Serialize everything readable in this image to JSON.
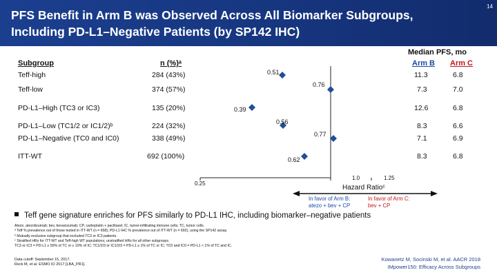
{
  "slide_number": "14",
  "title": "PFS Benefit in Arm B was Observed Across All Biomarker Subgroups, Including PD-L1–Negative Patients (by SP142 IHC)",
  "table": {
    "subgroup_header": "Subgroup",
    "n_header": "n (%)ᵃ",
    "median_header": "Median PFS, mo",
    "arm_b_header": "Arm B",
    "arm_c_header": "Arm C",
    "rows": [
      {
        "subgroup": "Teff-high",
        "n": "284 (43%)",
        "hr": "0.51",
        "arm_b": "11.3",
        "arm_c": "6.8"
      },
      {
        "subgroup": "Teff-low",
        "n": "374 (57%)",
        "hr": "0.76",
        "arm_b": "7.3",
        "arm_c": "7.0"
      },
      {
        "subgroup": "PD-L1–High (TC3 or IC3)",
        "n": "135 (20%)",
        "hr": "0.39",
        "arm_b": "12.6",
        "arm_c": "6.8"
      },
      {
        "subgroup": "PD-L1–Low (TC1/2 or IC1/2)ᵇ",
        "n": "224 (32%)",
        "hr": "0.56",
        "arm_b": "8.3",
        "arm_c": "6.6"
      },
      {
        "subgroup": "PD-L1–Negative (TC0 and IC0)",
        "n": "338 (49%)",
        "hr": "0.77",
        "arm_b": "7.1",
        "arm_c": "6.9"
      },
      {
        "subgroup": "ITT-WT",
        "n": "692 (100%)",
        "hr": "0.62",
        "arm_b": "8.3",
        "arm_c": "6.8"
      }
    ]
  },
  "forest_plot": {
    "axis_ticks": [
      "0.25",
      "1.0",
      "1.25"
    ],
    "axis_label": "Hazard Ratioᶜ",
    "favor_b": [
      "In favor of Arm B:",
      "atezo + bev + CP"
    ],
    "favor_c": [
      "In favor of Arm C:",
      "bev + CP"
    ],
    "colors": {
      "arm_b": "#1c47a5",
      "arm_c": "#c0161c",
      "marker": "#1f4e9a"
    }
  },
  "bullet": "Teff gene signature enriches for PFS similarly to PD-L1 IHC, including biomarker–negative patients",
  "footnotes": [
    "Atezo, atezolizumab; bev, bevacizumab; CP, carboplatin + paclitaxel; IC, tumor-infiltrating immune cells; TC, tumor cells.",
    "ᵃ Teff % prevalence out of those tested in ITT-WT (n = 658); PD-L1 IHC % prevalence out of ITT-WT (n = 692), using the SP142 assay.",
    "ᵇ Mutually exclusive subgroup that excluded TC3 or IC3 patients.",
    "ᶜ Stratified HRs for ITT-WT and Teff-high WT populations; unstratified HRs for all other subgroups.",
    "TC3 or IC3 = PD-L1 ≥ 50% of TC or ≥ 10% of IC; TC1/2/3 or IC1/2/3 = PD-L1 ≥ 1% of TC or IC; TC0 and IC0 = PD-L1 < 1% of TC and IC."
  ],
  "data_cutoff": [
    "Data cutoff: September 15, 2017.",
    "Reck M, et al. ESMO IO 2017 [LBA_PR1]."
  ],
  "citation": [
    "Kowanetz M, Socinski M, et al. AACR 2018",
    "IMpower150: Efficacy Across Subgroups"
  ]
}
